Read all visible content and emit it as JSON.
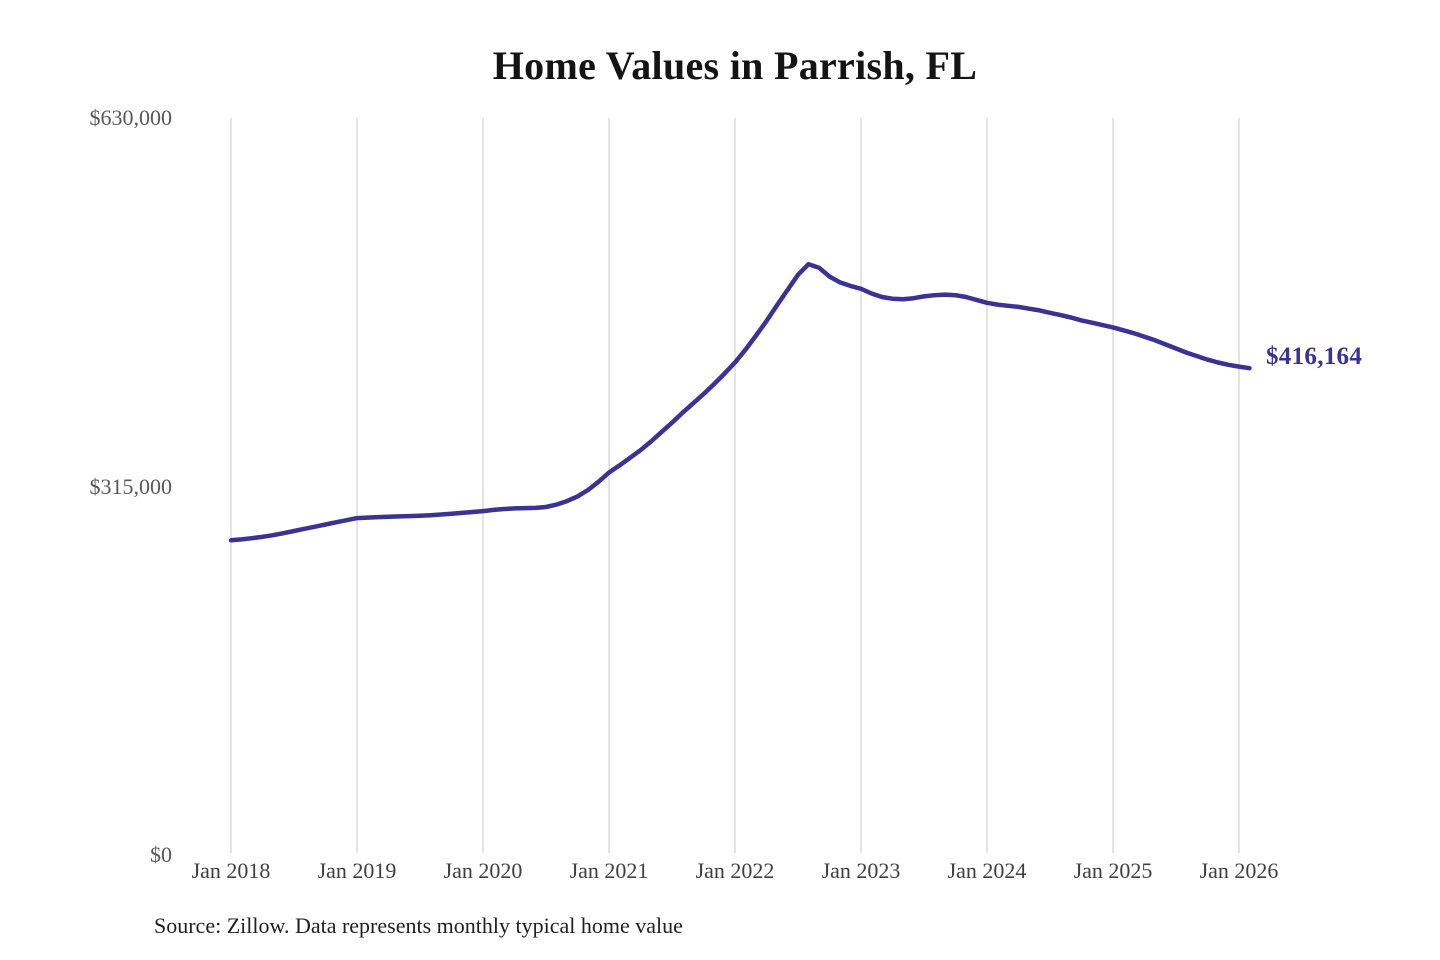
{
  "chart": {
    "title": "Home Values in Parrish, FL",
    "source_note": "Source: Zillow. Data represents monthly typical home value",
    "end_label": "$416,164",
    "colors": {
      "line": "#3a3393",
      "grid": "#d2d2d2",
      "title": "#141414",
      "y_tick_label": "#595959",
      "x_tick_label": "#404040",
      "end_label": "#3a3393",
      "background": "#ffffff"
    }
  },
  "chart_data": {
    "type": "line",
    "title": "Home Values in Parrish, FL",
    "xlabel": "",
    "ylabel": "",
    "ylim": [
      0,
      630000
    ],
    "y_ticks": [
      0,
      315000,
      630000
    ],
    "y_tick_labels": [
      "$0",
      "$315,000",
      "$630,000"
    ],
    "x_tick_labels": [
      "Jan 2018",
      "Jan 2019",
      "Jan 2020",
      "Jan 2021",
      "Jan 2022",
      "Jan 2023",
      "Jan 2024",
      "Jan 2025",
      "Jan 2026"
    ],
    "grid": "vertical-only",
    "legend": "none",
    "final_value": 416164,
    "final_value_label": "$416,164",
    "series": [
      {
        "name": "Monthly typical home value",
        "x_start": "2018-01",
        "frequency": "monthly",
        "values": [
          269000,
          269800,
          270800,
          272000,
          273400,
          275100,
          277000,
          278800,
          280600,
          282500,
          284400,
          286200,
          288000,
          288400,
          288800,
          289100,
          289400,
          289700,
          290000,
          290500,
          291100,
          291700,
          292400,
          293200,
          294000,
          295000,
          295800,
          296300,
          296500,
          296700,
          297500,
          299500,
          302500,
          306500,
          312000,
          319000,
          327000,
          333000,
          339500,
          346000,
          353500,
          361500,
          369500,
          378000,
          386000,
          394000,
          402500,
          411500,
          421000,
          432000,
          444000,
          456500,
          470000,
          483000,
          496000,
          505000,
          502000,
          494500,
          489500,
          486500,
          484000,
          480000,
          477000,
          475500,
          475000,
          476000,
          477500,
          478500,
          479000,
          478500,
          477000,
          474500,
          472000,
          470500,
          469500,
          468500,
          467000,
          465500,
          463500,
          461500,
          459500,
          457000,
          455000,
          453000,
          451000,
          448500,
          446000,
          443000,
          440000,
          436500,
          433000,
          429500,
          426500,
          423500,
          421000,
          419000,
          417500,
          416164
        ]
      }
    ]
  }
}
